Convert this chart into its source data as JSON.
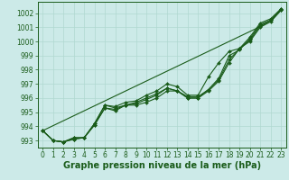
{
  "bg_color": "#cceae8",
  "grid_color": "#b0d8d0",
  "line_color": "#1a5c1a",
  "marker_color": "#1a5c1a",
  "xlabel": "Graphe pression niveau de la mer (hPa)",
  "xlabel_fontsize": 7,
  "tick_fontsize": 5.5,
  "ylim": [
    992.5,
    1002.8
  ],
  "xlim": [
    -0.5,
    23.5
  ],
  "yticks": [
    993,
    994,
    995,
    996,
    997,
    998,
    999,
    1000,
    1001,
    1002
  ],
  "xticks": [
    0,
    1,
    2,
    3,
    4,
    5,
    6,
    7,
    8,
    9,
    10,
    11,
    12,
    13,
    14,
    15,
    16,
    17,
    18,
    19,
    20,
    21,
    22,
    23
  ],
  "series": [
    [
      993.7,
      993.0,
      992.9,
      993.1,
      993.2,
      994.1,
      995.3,
      995.1,
      995.5,
      995.5,
      995.7,
      996.0,
      996.5,
      996.5,
      996.0,
      996.0,
      996.5,
      997.2,
      998.5,
      999.5,
      1000.0,
      1001.0,
      1001.4,
      1002.2
    ],
    [
      993.7,
      993.0,
      992.9,
      993.1,
      993.2,
      994.1,
      995.3,
      995.2,
      995.5,
      995.6,
      995.9,
      996.2,
      996.7,
      996.5,
      996.1,
      996.1,
      996.6,
      997.3,
      998.7,
      999.5,
      1000.1,
      1001.1,
      1001.5,
      1002.2
    ],
    [
      993.7,
      993.0,
      992.9,
      993.2,
      993.2,
      994.2,
      995.5,
      995.3,
      995.5,
      995.7,
      996.0,
      996.3,
      996.7,
      996.5,
      996.0,
      996.0,
      996.6,
      997.4,
      999.0,
      999.4,
      1000.2,
      1001.2,
      1001.5,
      1002.3
    ],
    [
      993.7,
      993.0,
      992.9,
      993.2,
      993.2,
      994.2,
      995.5,
      995.4,
      995.7,
      995.8,
      996.2,
      996.5,
      997.0,
      996.8,
      996.2,
      996.2,
      997.5,
      998.5,
      999.3,
      999.5,
      1000.3,
      1001.3,
      1001.6,
      1002.3
    ]
  ],
  "straight_line": [
    993.7,
    994.05,
    994.4,
    994.75,
    995.1,
    995.45,
    995.8,
    996.15,
    996.5,
    996.85,
    997.2,
    997.55,
    997.9,
    998.25,
    998.6,
    998.95,
    999.3,
    999.65,
    1000.0,
    1000.35,
    1000.7,
    1001.05,
    1001.4,
    1002.2
  ]
}
